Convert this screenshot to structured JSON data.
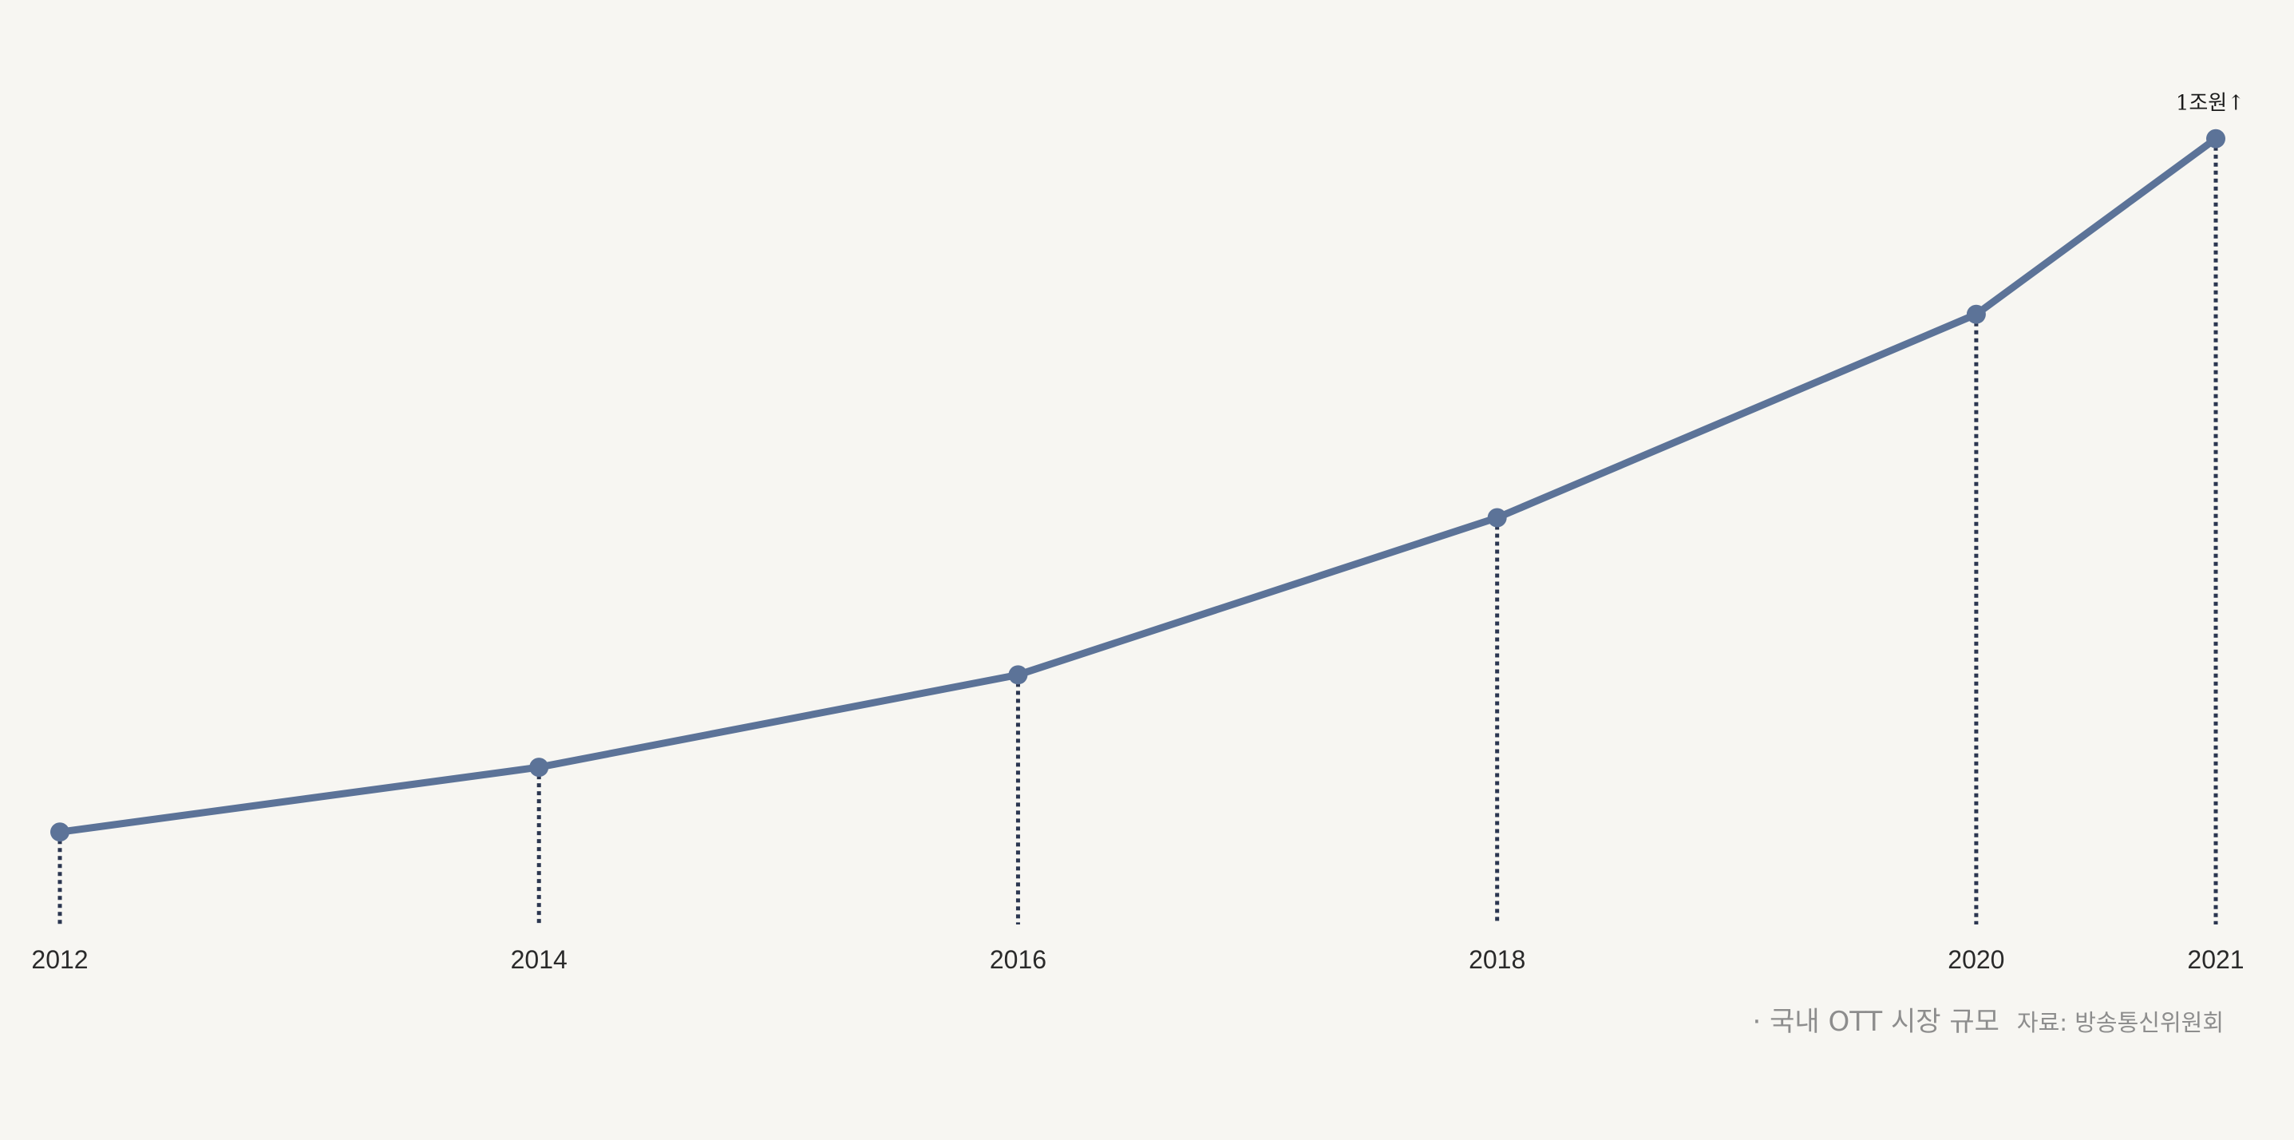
{
  "chart_data": {
    "type": "line",
    "x": [
      "2012",
      "2014",
      "2016",
      "2018",
      "2020",
      "2021"
    ],
    "values": [
      1.0,
      1.7,
      2.7,
      4.4,
      6.6,
      8.5
    ],
    "ylim": [
      0,
      10
    ],
    "grid": false,
    "title": "",
    "xlabel": "",
    "ylabel": "",
    "annotations": [
      {
        "x": "2021",
        "text": "1조원↑"
      }
    ]
  },
  "caption": {
    "title": "· 국내 OTT 시장 규모",
    "source": "자료: 방송통신위원회"
  },
  "colors": {
    "background": "#f7f6f2",
    "line": "#5c7398",
    "drop_line": "#2b3650",
    "text": "#2a2a2a",
    "caption": "#8d8d8d"
  }
}
